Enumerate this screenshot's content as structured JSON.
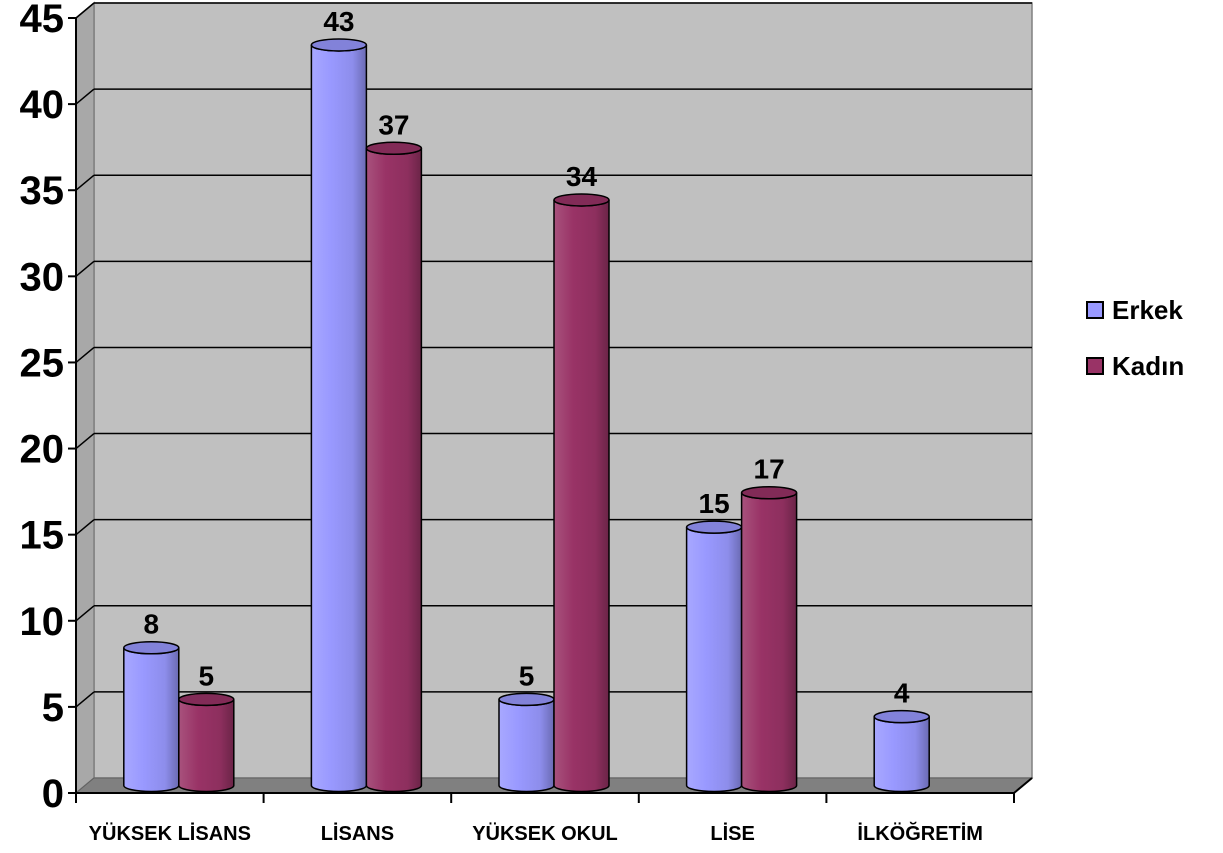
{
  "chart_data": {
    "type": "bar",
    "title": "",
    "xlabel": "",
    "ylabel": "",
    "ylim": [
      0,
      45
    ],
    "yticks": [
      "0",
      "5",
      "10",
      "15",
      "20",
      "25",
      "30",
      "35",
      "40",
      "45"
    ],
    "categories": [
      "YÜKSEK LİSANS",
      "LİSANS",
      "YÜKSEK OKUL",
      "LİSE",
      "İLKÖĞRETİM"
    ],
    "series": [
      {
        "name": "Erkek",
        "values": [
          8,
          43,
          5,
          15,
          4
        ],
        "color": "#9999ff"
      },
      {
        "name": "Kadın",
        "values": [
          5,
          37,
          34,
          17,
          null
        ],
        "color": "#993366"
      }
    ],
    "legend_position": "right",
    "grid": true,
    "wall_color": "#c0c0c0"
  }
}
